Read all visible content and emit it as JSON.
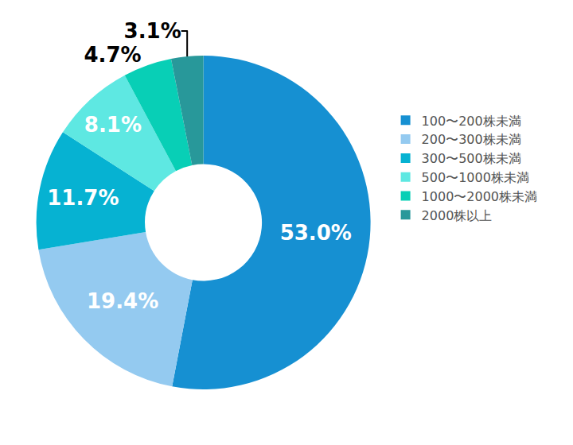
{
  "chart_data": {
    "type": "pie",
    "categories": [
      "100〜200株未満",
      "200〜300株未満",
      "300〜500株未満",
      "500〜1000株未満",
      "1000〜2000株未満",
      "2000株以上"
    ],
    "values": [
      53.0,
      19.4,
      11.7,
      8.1,
      4.7,
      3.1
    ],
    "value_labels": [
      "53.0%",
      "19.4%",
      "11.7%",
      "8.1%",
      "4.7%",
      "3.1%"
    ],
    "colors": [
      "#1690d2",
      "#94caf0",
      "#06b2d2",
      "#5ee8e2",
      "#08cfb6",
      "#28989a"
    ],
    "data_labels": true,
    "legend": "right"
  }
}
